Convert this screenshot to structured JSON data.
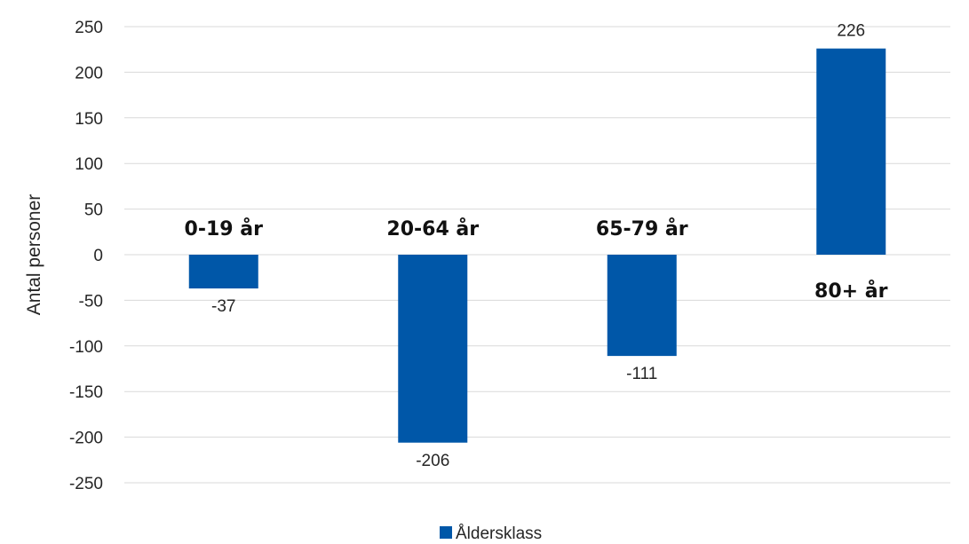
{
  "chart_data": {
    "type": "bar",
    "categories": [
      "0-19 år",
      "20-64 år",
      "65-79 år",
      "80+ år"
    ],
    "series": [
      {
        "name": "Åldersklass",
        "values": [
          -37,
          -206,
          -111,
          226
        ],
        "color": "#0057a8"
      }
    ],
    "ylabel": "Antal personer",
    "xlabel": "",
    "ylim": [
      -250,
      250
    ],
    "yticks": [
      250,
      200,
      150,
      100,
      50,
      0,
      -50,
      -100,
      -150,
      -200,
      -250
    ],
    "data_labels": [
      "-37",
      "-206",
      "-111",
      "226"
    ],
    "grid": true,
    "legend": {
      "position": "bottom",
      "entries": [
        "Åldersklass"
      ]
    }
  }
}
